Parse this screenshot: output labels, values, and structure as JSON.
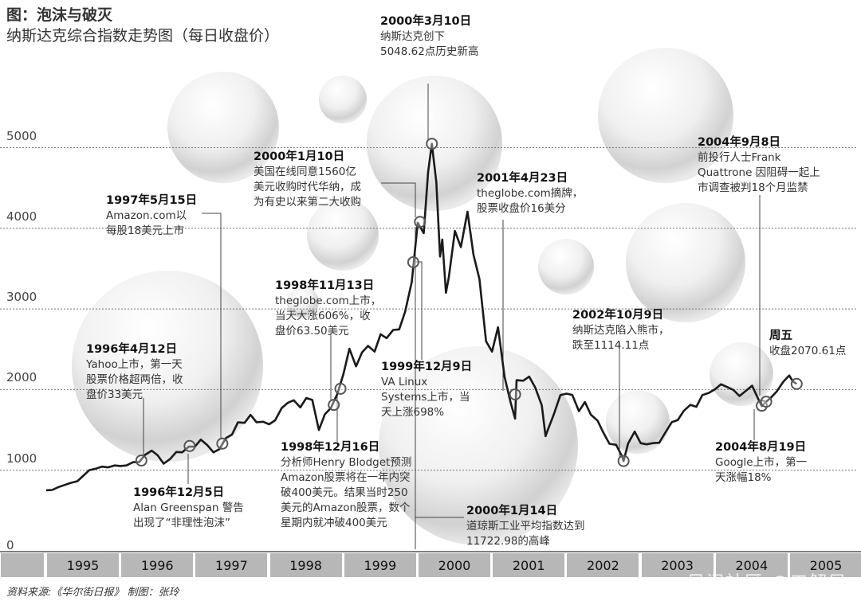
{
  "title": "图：泡沫与破灭",
  "subtitle": "纳斯达克综合指数走势图（每日收盘价）",
  "footer": "资料来源:《华尔街日报》   制图：张玲",
  "watermark": "风闻社区 @工解局",
  "colors": {
    "line": "#1a1a1a",
    "grid": "#777777",
    "band": "#b7b7b7"
  },
  "chart_data": {
    "type": "line",
    "title": "纳斯达克综合指数走势图（每日收盘价）",
    "xlabel": "",
    "ylabel": "",
    "ylim": [
      0,
      5000
    ],
    "xlim": [
      1995,
      2006
    ],
    "yticks": [
      0,
      1000,
      2000,
      3000,
      4000,
      5000
    ],
    "ytick_labels": [
      "0",
      "1000",
      "2000",
      "3000",
      "4000",
      "5000"
    ],
    "xtick_labels": [
      "1995",
      "1996",
      "1997",
      "1998",
      "1999",
      "2000",
      "2001",
      "2002",
      "2003",
      "2004",
      "2005"
    ],
    "grid": "horizontal dotted",
    "series": [
      {
        "name": "纳斯达克综合指数",
        "points": [
          [
            1995.0,
            751
          ],
          [
            1995.08,
            755
          ],
          [
            1995.17,
            793
          ],
          [
            1995.25,
            817
          ],
          [
            1995.33,
            843
          ],
          [
            1995.42,
            864
          ],
          [
            1995.5,
            933
          ],
          [
            1995.58,
            1001
          ],
          [
            1995.67,
            1020
          ],
          [
            1995.75,
            1044
          ],
          [
            1995.83,
            1036
          ],
          [
            1995.92,
            1059
          ],
          [
            1996.0,
            1052
          ],
          [
            1996.08,
            1059
          ],
          [
            1996.17,
            1100
          ],
          [
            1996.25,
            1101
          ],
          [
            1996.33,
            1191
          ],
          [
            1996.42,
            1243
          ],
          [
            1996.5,
            1185
          ],
          [
            1996.58,
            1081
          ],
          [
            1996.67,
            1141
          ],
          [
            1996.75,
            1226
          ],
          [
            1996.83,
            1222
          ],
          [
            1996.92,
            1293
          ],
          [
            1997.0,
            1291
          ],
          [
            1997.08,
            1380
          ],
          [
            1997.17,
            1309
          ],
          [
            1997.25,
            1222
          ],
          [
            1997.33,
            1261
          ],
          [
            1997.42,
            1400
          ],
          [
            1997.5,
            1442
          ],
          [
            1997.58,
            1594
          ],
          [
            1997.67,
            1587
          ],
          [
            1997.75,
            1686
          ],
          [
            1997.83,
            1594
          ],
          [
            1997.92,
            1601
          ],
          [
            1998.0,
            1570
          ],
          [
            1998.08,
            1619
          ],
          [
            1998.17,
            1771
          ],
          [
            1998.25,
            1835
          ],
          [
            1998.33,
            1868
          ],
          [
            1998.42,
            1779
          ],
          [
            1998.5,
            1895
          ],
          [
            1998.58,
            1872
          ],
          [
            1998.67,
            1499
          ],
          [
            1998.75,
            1694
          ],
          [
            1998.83,
            1771
          ],
          [
            1998.92,
            1950
          ],
          [
            1999.0,
            2193
          ],
          [
            1999.08,
            2506
          ],
          [
            1999.17,
            2288
          ],
          [
            1999.25,
            2461
          ],
          [
            1999.33,
            2542
          ],
          [
            1999.42,
            2471
          ],
          [
            1999.5,
            2686
          ],
          [
            1999.58,
            2638
          ],
          [
            1999.67,
            2739
          ],
          [
            1999.75,
            2746
          ],
          [
            1999.83,
            2966
          ],
          [
            1999.92,
            3336
          ],
          [
            2000.0,
            4069
          ],
          [
            2000.08,
            3940
          ],
          [
            2000.14,
            4697
          ],
          [
            2000.19,
            5048
          ],
          [
            2000.25,
            4573
          ],
          [
            2000.3,
            3650
          ],
          [
            2000.33,
            3861
          ],
          [
            2000.38,
            3200
          ],
          [
            2000.42,
            3401
          ],
          [
            2000.5,
            3966
          ],
          [
            2000.58,
            3767
          ],
          [
            2000.67,
            4206
          ],
          [
            2000.75,
            3673
          ],
          [
            2000.83,
            3370
          ],
          [
            2000.92,
            2598
          ],
          [
            2001.0,
            2471
          ],
          [
            2001.08,
            2773
          ],
          [
            2001.17,
            2152
          ],
          [
            2001.25,
            1840
          ],
          [
            2001.31,
            1640
          ],
          [
            2001.33,
            2116
          ],
          [
            2001.42,
            2110
          ],
          [
            2001.5,
            2161
          ],
          [
            2001.58,
            2027
          ],
          [
            2001.67,
            1805
          ],
          [
            2001.72,
            1423
          ],
          [
            2001.75,
            1499
          ],
          [
            2001.83,
            1690
          ],
          [
            2001.92,
            1931
          ],
          [
            2002.0,
            1950
          ],
          [
            2002.08,
            1934
          ],
          [
            2002.17,
            1731
          ],
          [
            2002.25,
            1845
          ],
          [
            2002.33,
            1688
          ],
          [
            2002.42,
            1616
          ],
          [
            2002.5,
            1463
          ],
          [
            2002.58,
            1328
          ],
          [
            2002.67,
            1315
          ],
          [
            2002.75,
            1172
          ],
          [
            2002.77,
            1114
          ],
          [
            2002.83,
            1330
          ],
          [
            2002.92,
            1479
          ],
          [
            2003.0,
            1336
          ],
          [
            2003.08,
            1321
          ],
          [
            2003.17,
            1337
          ],
          [
            2003.25,
            1341
          ],
          [
            2003.33,
            1464
          ],
          [
            2003.42,
            1596
          ],
          [
            2003.5,
            1623
          ],
          [
            2003.58,
            1735
          ],
          [
            2003.67,
            1810
          ],
          [
            2003.75,
            1787
          ],
          [
            2003.83,
            1932
          ],
          [
            2003.92,
            1960
          ],
          [
            2004.0,
            2003
          ],
          [
            2004.08,
            2066
          ],
          [
            2004.17,
            2030
          ],
          [
            2004.25,
            1994
          ],
          [
            2004.33,
            1920
          ],
          [
            2004.42,
            1987
          ],
          [
            2004.5,
            2048
          ],
          [
            2004.58,
            1887
          ],
          [
            2004.63,
            1795
          ],
          [
            2004.69,
            1850
          ],
          [
            2004.75,
            1897
          ],
          [
            2004.83,
            1975
          ],
          [
            2004.92,
            2097
          ],
          [
            2005.0,
            2175
          ],
          [
            2005.05,
            2100
          ],
          [
            2005.1,
            2070.61
          ]
        ]
      }
    ],
    "markers": [
      [
        1996.28,
        1120
      ],
      [
        1996.93,
        1300
      ],
      [
        1997.37,
        1330
      ],
      [
        1998.87,
        1810
      ],
      [
        1998.96,
        2010
      ],
      [
        1999.94,
        3580
      ],
      [
        2000.03,
        4080
      ],
      [
        2000.19,
        5048.62
      ],
      [
        2001.31,
        1940
      ],
      [
        2002.77,
        1114.11
      ],
      [
        2004.63,
        1800
      ],
      [
        2004.69,
        1850
      ],
      [
        2005.1,
        2070.61
      ]
    ],
    "annotations": [
      {
        "date": "2000年3月10日",
        "lines": [
          "纳斯达克创下",
          "5048.62点历史新高"
        ]
      },
      {
        "date": "2000年1月10日",
        "lines": [
          "美国在线同意1560亿",
          "美元收购时代华纳，成",
          "为有史以来第二大收购"
        ]
      },
      {
        "date": "2001年4月23日",
        "lines": [
          "theglobe.com摘牌，",
          "股票收盘价16美分"
        ]
      },
      {
        "date": "2004年9月8日",
        "lines": [
          "前投行人士Frank",
          "Quattrone 因阻碍一起上",
          "市调查被判18个月监禁"
        ]
      },
      {
        "date": "1997年5月15日",
        "lines": [
          "Amazon.com以",
          "每股18美元上市"
        ]
      },
      {
        "date": "1998年11月13日",
        "lines": [
          "theglobe.com上市，",
          "当天大涨606%，收",
          "盘价63.50美元"
        ]
      },
      {
        "date": "1996年4月12日",
        "lines": [
          "Yahoo上市，第一天",
          "股票价格超两倍，收",
          "盘价33美元"
        ]
      },
      {
        "date": "1999年12月9日",
        "lines": [
          "VA Linux",
          "Systems上市，当",
          "天上涨698%"
        ]
      },
      {
        "date": "2002年10月9日",
        "lines": [
          "纳斯达克陷入熊市，",
          "跌至1114.11点"
        ]
      },
      {
        "date": "周五",
        "lines": [
          "收盘2070.61点"
        ]
      },
      {
        "date": "1998年12月16日",
        "lines": [
          "分析师Henry Blodget预测",
          "Amazon股票将在一年内突",
          "破400美元。结果当时250",
          "美元的Amazon股票，数个",
          "星期内就冲破400美元"
        ]
      },
      {
        "date": "1996年12月5日",
        "lines": [
          "Alan Greenspan 警告",
          "出现了“非理性泡沫”"
        ]
      },
      {
        "date": "2000年1月14日",
        "lines": [
          "道琼斯工业平均指数达到",
          "11722.98的高峰"
        ]
      },
      {
        "date": "2004年8月19日",
        "lines": [
          "Google上市，第一",
          "天涨幅18%"
        ]
      }
    ]
  }
}
